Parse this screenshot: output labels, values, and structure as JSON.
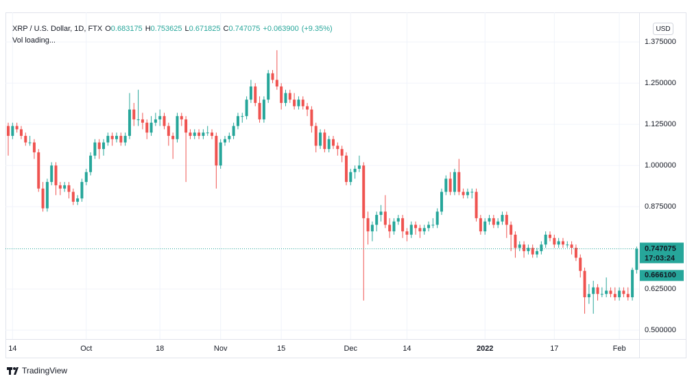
{
  "header": {
    "symbol": "XRP / U.S. Dollar, 1D, FTX",
    "o": "O",
    "h": "H",
    "l": "L",
    "c": "C",
    "change": "+0.063900",
    "change_pct": "(+9.35%)",
    "volume": "Vol loading...",
    "currency": "USD",
    "brand": "TradingView"
  },
  "chart_data": {
    "type": "candlestick",
    "up_color": "#26a69a",
    "down_color": "#ef5350",
    "grid": true,
    "ylim": [
      0.473,
      1.465
    ],
    "yticks": [
      {
        "value": 1.375,
        "label": "1.375000"
      },
      {
        "value": 1.25,
        "label": "1.250000"
      },
      {
        "value": 1.125,
        "label": "1.125000"
      },
      {
        "value": 1,
        "label": "1.000000"
      },
      {
        "value": 0.875,
        "label": "0.875000"
      },
      {
        "value": 0.625,
        "label": "0.625000"
      },
      {
        "value": 0.5,
        "label": "0.500000"
      }
    ],
    "xticks": [
      {
        "value": "2021-09-14",
        "label": "14"
      },
      {
        "value": "2021-10-01",
        "label": "Oct"
      },
      {
        "value": "2021-10-18",
        "label": "18"
      },
      {
        "value": "2021-11-01",
        "label": "Nov"
      },
      {
        "value": "2021-11-15",
        "label": "15"
      },
      {
        "value": "2021-12-01",
        "label": "Dec"
      },
      {
        "value": "2021-12-14",
        "label": "14"
      },
      {
        "value": "2022-01-01",
        "label": "2022"
      },
      {
        "value": "2022-01-17",
        "label": "17"
      },
      {
        "value": "2022-02-01",
        "label": "Feb"
      }
    ],
    "last_time": "17:03:24",
    "marker_line": {
      "value": 0.6661,
      "label": "0.666100"
    },
    "x": [
      "2021-09-13",
      "2021-09-14",
      "2021-09-15",
      "2021-09-16",
      "2021-09-17",
      "2021-09-18",
      "2021-09-19",
      "2021-09-20",
      "2021-09-21",
      "2021-09-22",
      "2021-09-23",
      "2021-09-24",
      "2021-09-25",
      "2021-09-26",
      "2021-09-27",
      "2021-09-28",
      "2021-09-29",
      "2021-09-30",
      "2021-10-01",
      "2021-10-02",
      "2021-10-03",
      "2021-10-04",
      "2021-10-05",
      "2021-10-06",
      "2021-10-07",
      "2021-10-08",
      "2021-10-09",
      "2021-10-10",
      "2021-10-11",
      "2021-10-12",
      "2021-10-13",
      "2021-10-14",
      "2021-10-15",
      "2021-10-16",
      "2021-10-17",
      "2021-10-18",
      "2021-10-19",
      "2021-10-20",
      "2021-10-21",
      "2021-10-22",
      "2021-10-23",
      "2021-10-24",
      "2021-10-25",
      "2021-10-26",
      "2021-10-27",
      "2021-10-28",
      "2021-10-29",
      "2021-10-30",
      "2021-10-31",
      "2021-11-01",
      "2021-11-02",
      "2021-11-03",
      "2021-11-04",
      "2021-11-05",
      "2021-11-06",
      "2021-11-07",
      "2021-11-08",
      "2021-11-09",
      "2021-11-10",
      "2021-11-11",
      "2021-11-12",
      "2021-11-13",
      "2021-11-14",
      "2021-11-15",
      "2021-11-16",
      "2021-11-17",
      "2021-11-18",
      "2021-11-19",
      "2021-11-20",
      "2021-11-21",
      "2021-11-22",
      "2021-11-23",
      "2021-11-24",
      "2021-11-25",
      "2021-11-26",
      "2021-11-27",
      "2021-11-28",
      "2021-11-29",
      "2021-11-30",
      "2021-12-01",
      "2021-12-02",
      "2021-12-03",
      "2021-12-04",
      "2021-12-05",
      "2021-12-06",
      "2021-12-07",
      "2021-12-08",
      "2021-12-09",
      "2021-12-10",
      "2021-12-11",
      "2021-12-12",
      "2021-12-13",
      "2021-12-14",
      "2021-12-15",
      "2021-12-16",
      "2021-12-17",
      "2021-12-18",
      "2021-12-19",
      "2021-12-20",
      "2021-12-21",
      "2021-12-22",
      "2021-12-23",
      "2021-12-24",
      "2021-12-25",
      "2021-12-26",
      "2021-12-27",
      "2021-12-28",
      "2021-12-29",
      "2021-12-30",
      "2021-12-31",
      "2022-01-01",
      "2022-01-02",
      "2022-01-03",
      "2022-01-04",
      "2022-01-05",
      "2022-01-06",
      "2022-01-07",
      "2022-01-08",
      "2022-01-09",
      "2022-01-10",
      "2022-01-11",
      "2022-01-12",
      "2022-01-13",
      "2022-01-14",
      "2022-01-15",
      "2022-01-16",
      "2022-01-17",
      "2022-01-18",
      "2022-01-19",
      "2022-01-20",
      "2022-01-21",
      "2022-01-22",
      "2022-01-23",
      "2022-01-24",
      "2022-01-25",
      "2022-01-26",
      "2022-01-27",
      "2022-01-28",
      "2022-01-29",
      "2022-01-30",
      "2022-01-31",
      "2022-02-01",
      "2022-02-02",
      "2022-02-03",
      "2022-02-04",
      "2022-02-05"
    ],
    "candles": [
      [
        1.12,
        1.13,
        1.03,
        1.09
      ],
      [
        1.09,
        1.13,
        1.08,
        1.12
      ],
      [
        1.12,
        1.13,
        1.1,
        1.11
      ],
      [
        1.11,
        1.12,
        1.08,
        1.09
      ],
      [
        1.09,
        1.1,
        1.06,
        1.07
      ],
      [
        1.07,
        1.09,
        1.06,
        1.07
      ],
      [
        1.07,
        1.08,
        1.02,
        1.04
      ],
      [
        1.04,
        1.05,
        0.92,
        0.93
      ],
      [
        0.93,
        0.95,
        0.86,
        0.87
      ],
      [
        0.87,
        0.96,
        0.86,
        0.95
      ],
      [
        0.95,
        1.01,
        0.94,
        1.0
      ],
      [
        1.0,
        1.01,
        0.91,
        0.94
      ],
      [
        0.94,
        0.95,
        0.91,
        0.93
      ],
      [
        0.93,
        0.95,
        0.92,
        0.94
      ],
      [
        0.94,
        0.95,
        0.9,
        0.92
      ],
      [
        0.92,
        0.93,
        0.88,
        0.89
      ],
      [
        0.89,
        0.91,
        0.88,
        0.9
      ],
      [
        0.9,
        0.96,
        0.89,
        0.95
      ],
      [
        0.95,
        0.99,
        0.94,
        0.98
      ],
      [
        0.98,
        1.04,
        0.97,
        1.03
      ],
      [
        1.03,
        1.08,
        1.02,
        1.07
      ],
      [
        1.07,
        1.08,
        1.02,
        1.05
      ],
      [
        1.05,
        1.08,
        1.03,
        1.07
      ],
      [
        1.07,
        1.1,
        1.06,
        1.09
      ],
      [
        1.09,
        1.1,
        1.06,
        1.08
      ],
      [
        1.08,
        1.1,
        1.07,
        1.09
      ],
      [
        1.09,
        1.1,
        1.06,
        1.07
      ],
      [
        1.07,
        1.1,
        1.06,
        1.09
      ],
      [
        1.09,
        1.22,
        1.08,
        1.17
      ],
      [
        1.17,
        1.19,
        1.12,
        1.14
      ],
      [
        1.14,
        1.23,
        1.12,
        1.14
      ],
      [
        1.14,
        1.16,
        1.11,
        1.13
      ],
      [
        1.13,
        1.14,
        1.08,
        1.1
      ],
      [
        1.1,
        1.15,
        1.09,
        1.13
      ],
      [
        1.13,
        1.16,
        1.12,
        1.14
      ],
      [
        1.14,
        1.17,
        1.12,
        1.15
      ],
      [
        1.15,
        1.16,
        1.11,
        1.12
      ],
      [
        1.12,
        1.13,
        1.06,
        1.09
      ],
      [
        1.09,
        1.1,
        1.02,
        1.08
      ],
      [
        1.08,
        1.16,
        1.07,
        1.15
      ],
      [
        1.15,
        1.16,
        1.12,
        1.14
      ],
      [
        1.14,
        1.15,
        0.95,
        1.1
      ],
      [
        1.1,
        1.11,
        1.08,
        1.09
      ],
      [
        1.09,
        1.11,
        1.08,
        1.1
      ],
      [
        1.1,
        1.11,
        1.08,
        1.09
      ],
      [
        1.09,
        1.11,
        1.08,
        1.1
      ],
      [
        1.1,
        1.12,
        1.09,
        1.1
      ],
      [
        1.1,
        1.11,
        1.08,
        1.09
      ],
      [
        1.09,
        1.1,
        0.93,
        1.0
      ],
      [
        1.0,
        1.08,
        0.99,
        1.07
      ],
      [
        1.07,
        1.09,
        1.06,
        1.08
      ],
      [
        1.08,
        1.1,
        1.07,
        1.09
      ],
      [
        1.09,
        1.13,
        1.08,
        1.12
      ],
      [
        1.12,
        1.16,
        1.11,
        1.15
      ],
      [
        1.15,
        1.16,
        1.13,
        1.15
      ],
      [
        1.15,
        1.21,
        1.14,
        1.2
      ],
      [
        1.2,
        1.26,
        1.19,
        1.24
      ],
      [
        1.24,
        1.25,
        1.18,
        1.19
      ],
      [
        1.19,
        1.21,
        1.13,
        1.14
      ],
      [
        1.14,
        1.21,
        1.13,
        1.2
      ],
      [
        1.2,
        1.29,
        1.19,
        1.28
      ],
      [
        1.28,
        1.29,
        1.25,
        1.26
      ],
      [
        1.26,
        1.35,
        1.23,
        1.24
      ],
      [
        1.24,
        1.25,
        1.17,
        1.19
      ],
      [
        1.19,
        1.23,
        1.18,
        1.22
      ],
      [
        1.22,
        1.23,
        1.19,
        1.2
      ],
      [
        1.2,
        1.22,
        1.17,
        1.18
      ],
      [
        1.18,
        1.21,
        1.17,
        1.2
      ],
      [
        1.2,
        1.21,
        1.17,
        1.18
      ],
      [
        1.18,
        1.19,
        1.15,
        1.17
      ],
      [
        1.17,
        1.18,
        1.1,
        1.12
      ],
      [
        1.12,
        1.13,
        1.04,
        1.06
      ],
      [
        1.06,
        1.11,
        1.05,
        1.1
      ],
      [
        1.1,
        1.11,
        1.04,
        1.05
      ],
      [
        1.05,
        1.09,
        1.04,
        1.08
      ],
      [
        1.08,
        1.09,
        1.05,
        1.06
      ],
      [
        1.06,
        1.07,
        1.03,
        1.05
      ],
      [
        1.05,
        1.06,
        1.01,
        1.03
      ],
      [
        1.03,
        1.04,
        0.94,
        0.95
      ],
      [
        0.95,
        0.99,
        0.94,
        0.98
      ],
      [
        0.98,
        1.0,
        0.96,
        0.99
      ],
      [
        0.99,
        1.03,
        0.98,
        1.0
      ],
      [
        1.0,
        1.01,
        0.59,
        0.84
      ],
      [
        0.84,
        0.86,
        0.76,
        0.8
      ],
      [
        0.8,
        0.83,
        0.77,
        0.82
      ],
      [
        0.82,
        0.86,
        0.8,
        0.85
      ],
      [
        0.85,
        0.88,
        0.83,
        0.86
      ],
      [
        0.86,
        0.91,
        0.81,
        0.82
      ],
      [
        0.82,
        0.84,
        0.78,
        0.8
      ],
      [
        0.8,
        0.84,
        0.79,
        0.83
      ],
      [
        0.83,
        0.85,
        0.82,
        0.84
      ],
      [
        0.84,
        0.85,
        0.78,
        0.8
      ],
      [
        0.8,
        0.81,
        0.77,
        0.79
      ],
      [
        0.79,
        0.83,
        0.78,
        0.82
      ],
      [
        0.82,
        0.83,
        0.79,
        0.81
      ],
      [
        0.81,
        0.82,
        0.78,
        0.8
      ],
      [
        0.8,
        0.82,
        0.79,
        0.81
      ],
      [
        0.81,
        0.83,
        0.8,
        0.82
      ],
      [
        0.82,
        0.84,
        0.81,
        0.82
      ],
      [
        0.82,
        0.87,
        0.81,
        0.86
      ],
      [
        0.86,
        0.93,
        0.85,
        0.92
      ],
      [
        0.92,
        0.97,
        0.91,
        0.96
      ],
      [
        0.96,
        0.98,
        0.91,
        0.92
      ],
      [
        0.92,
        0.99,
        0.91,
        0.98
      ],
      [
        0.98,
        1.02,
        0.91,
        0.92
      ],
      [
        0.92,
        0.93,
        0.9,
        0.91
      ],
      [
        0.91,
        0.93,
        0.9,
        0.92
      ],
      [
        0.92,
        0.93,
        0.9,
        0.92
      ],
      [
        0.92,
        0.93,
        0.83,
        0.84
      ],
      [
        0.84,
        0.85,
        0.79,
        0.8
      ],
      [
        0.8,
        0.84,
        0.79,
        0.83
      ],
      [
        0.83,
        0.85,
        0.82,
        0.84
      ],
      [
        0.84,
        0.85,
        0.81,
        0.82
      ],
      [
        0.82,
        0.84,
        0.81,
        0.83
      ],
      [
        0.83,
        0.86,
        0.82,
        0.85
      ],
      [
        0.85,
        0.86,
        0.78,
        0.82
      ],
      [
        0.82,
        0.83,
        0.74,
        0.79
      ],
      [
        0.79,
        0.8,
        0.72,
        0.75
      ],
      [
        0.75,
        0.77,
        0.74,
        0.76
      ],
      [
        0.76,
        0.77,
        0.72,
        0.74
      ],
      [
        0.74,
        0.76,
        0.73,
        0.75
      ],
      [
        0.75,
        0.76,
        0.72,
        0.73
      ],
      [
        0.73,
        0.75,
        0.72,
        0.74
      ],
      [
        0.74,
        0.77,
        0.73,
        0.76
      ],
      [
        0.76,
        0.8,
        0.75,
        0.79
      ],
      [
        0.79,
        0.8,
        0.77,
        0.78
      ],
      [
        0.78,
        0.79,
        0.75,
        0.76
      ],
      [
        0.76,
        0.78,
        0.75,
        0.77
      ],
      [
        0.77,
        0.78,
        0.75,
        0.76
      ],
      [
        0.76,
        0.77,
        0.75,
        0.76
      ],
      [
        0.76,
        0.77,
        0.73,
        0.75
      ],
      [
        0.75,
        0.76,
        0.71,
        0.72
      ],
      [
        0.72,
        0.73,
        0.66,
        0.68
      ],
      [
        0.68,
        0.69,
        0.55,
        0.6
      ],
      [
        0.6,
        0.64,
        0.58,
        0.61
      ],
      [
        0.61,
        0.65,
        0.55,
        0.63
      ],
      [
        0.63,
        0.64,
        0.59,
        0.61
      ],
      [
        0.61,
        0.63,
        0.6,
        0.61
      ],
      [
        0.61,
        0.66,
        0.6,
        0.62
      ],
      [
        0.62,
        0.63,
        0.6,
        0.61
      ],
      [
        0.61,
        0.63,
        0.59,
        0.6
      ],
      [
        0.6,
        0.63,
        0.59,
        0.62
      ],
      [
        0.62,
        0.63,
        0.6,
        0.61
      ],
      [
        0.61,
        0.63,
        0.59,
        0.6
      ],
      [
        0.6,
        0.69,
        0.59,
        0.683
      ],
      [
        0.683175,
        0.753625,
        0.671825,
        0.747075
      ]
    ]
  }
}
